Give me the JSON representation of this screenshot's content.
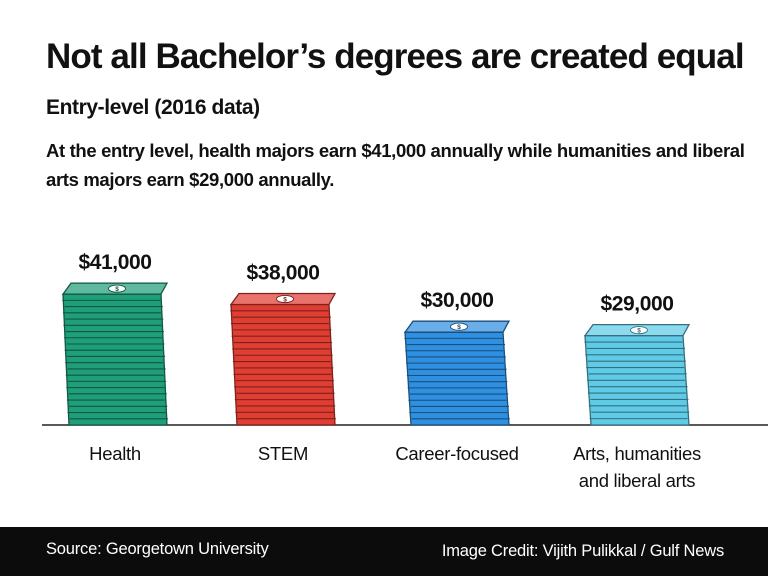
{
  "header": {
    "title": "Not all Bachelor’s degrees are created equal",
    "subtitle": "Entry-level (2016 data)",
    "description": "At the entry level, health majors earn $41,000 annually while humanities and liberal arts majors earn $29,000 annually."
  },
  "footer": {
    "source": "Source: Georgetown University",
    "credit": "Image Credit: Vijith Pulikkal / Gulf News"
  },
  "chart_data": {
    "type": "bar",
    "title": "Not all Bachelor’s degrees are created equal",
    "subtitle": "Entry-level (2016 data)",
    "categories": [
      [
        "Health"
      ],
      [
        "STEM"
      ],
      [
        "Career-focused"
      ],
      [
        "Arts, humanities",
        "and liberal arts"
      ]
    ],
    "values": [
      41000,
      38000,
      30000,
      29000
    ],
    "value_labels": [
      "$41,000",
      "$38,000",
      "$30,000",
      "$29,000"
    ],
    "colors": [
      "#1f9e7a",
      "#e03d33",
      "#2f8fe0",
      "#5fcbe6"
    ],
    "bar_style": "stacked-banknote-bills",
    "bill_symbol": "$",
    "xlabel": "",
    "ylabel": "",
    "grid": false,
    "legend": "none"
  }
}
